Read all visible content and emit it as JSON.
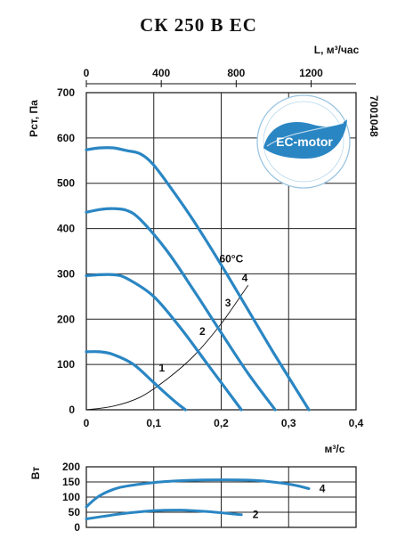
{
  "title": "СК 250 В ЕС",
  "side_code": "7001048",
  "badge": {
    "text": "EC-motor",
    "color": "#2a86c3"
  },
  "chart_data": [
    {
      "type": "line",
      "title": "СК 250 В ЕС",
      "xlabel": "м³/с",
      "ylabel": "Рст, Па",
      "xlim": [
        0,
        0.4
      ],
      "ylim": [
        0,
        700
      ],
      "x_ticks": [
        "0",
        "0,1",
        "0,2",
        "0,3",
        "0,4"
      ],
      "y_ticks": [
        "0",
        "100",
        "200",
        "300",
        "400",
        "500",
        "600",
        "700"
      ],
      "top_axis": {
        "label": "L, м³/час",
        "ticks": [
          "0",
          "400",
          "800",
          "1200"
        ],
        "values": [
          0,
          400,
          800,
          1200
        ]
      },
      "grid": true,
      "series": [
        {
          "name": "1",
          "x": [
            0,
            0.02,
            0.04,
            0.07,
            0.1,
            0.13,
            0.147
          ],
          "y": [
            128,
            128,
            122,
            100,
            60,
            20,
            0
          ]
        },
        {
          "name": "2",
          "x": [
            0,
            0.02,
            0.04,
            0.06,
            0.1,
            0.14,
            0.18,
            0.21,
            0.23
          ],
          "y": [
            296,
            298,
            298,
            290,
            250,
            180,
            100,
            40,
            0
          ]
        },
        {
          "name": "3",
          "x": [
            0,
            0.02,
            0.04,
            0.06,
            0.08,
            0.12,
            0.16,
            0.2,
            0.24,
            0.28
          ],
          "y": [
            436,
            442,
            444,
            440,
            420,
            350,
            262,
            170,
            80,
            0
          ]
        },
        {
          "name": "4",
          "x": [
            0,
            0.02,
            0.04,
            0.06,
            0.08,
            0.1,
            0.13,
            0.16,
            0.2,
            0.24,
            0.28,
            0.33
          ],
          "y": [
            574,
            578,
            578,
            572,
            565,
            540,
            480,
            415,
            320,
            220,
            120,
            0
          ]
        }
      ],
      "system_curve": {
        "label": "60°С",
        "x": [
          0,
          0.04,
          0.08,
          0.12,
          0.16,
          0.2,
          0.24
        ],
        "y": [
          0,
          8,
          28,
          68,
          120,
          190,
          275
        ]
      },
      "curve_labels": [
        {
          "text": "1",
          "x": 0.112,
          "y": 85
        },
        {
          "text": "2",
          "x": 0.172,
          "y": 165
        },
        {
          "text": "3",
          "x": 0.21,
          "y": 228
        },
        {
          "text": "4",
          "x": 0.235,
          "y": 283
        },
        {
          "text": "60°С",
          "x": 0.215,
          "y": 325
        }
      ]
    },
    {
      "type": "line",
      "ylabel": "Вт",
      "xlim": [
        0,
        0.4
      ],
      "ylim": [
        0,
        200
      ],
      "y_ticks": [
        "0",
        "50",
        "100",
        "150",
        "200"
      ],
      "grid": true,
      "series": [
        {
          "name": "4",
          "x": [
            0,
            0.02,
            0.05,
            0.1,
            0.15,
            0.2,
            0.25,
            0.3,
            0.33
          ],
          "y": [
            68,
            105,
            132,
            148,
            155,
            157,
            155,
            143,
            128
          ]
        },
        {
          "name": "2",
          "x": [
            0,
            0.03,
            0.06,
            0.1,
            0.14,
            0.18,
            0.23
          ],
          "y": [
            28,
            38,
            47,
            55,
            57,
            52,
            42
          ]
        }
      ],
      "curve_labels": [
        {
          "text": "4",
          "x": 0.335,
          "y": 128
        },
        {
          "text": "2",
          "x": 0.236,
          "y": 42
        }
      ]
    }
  ]
}
